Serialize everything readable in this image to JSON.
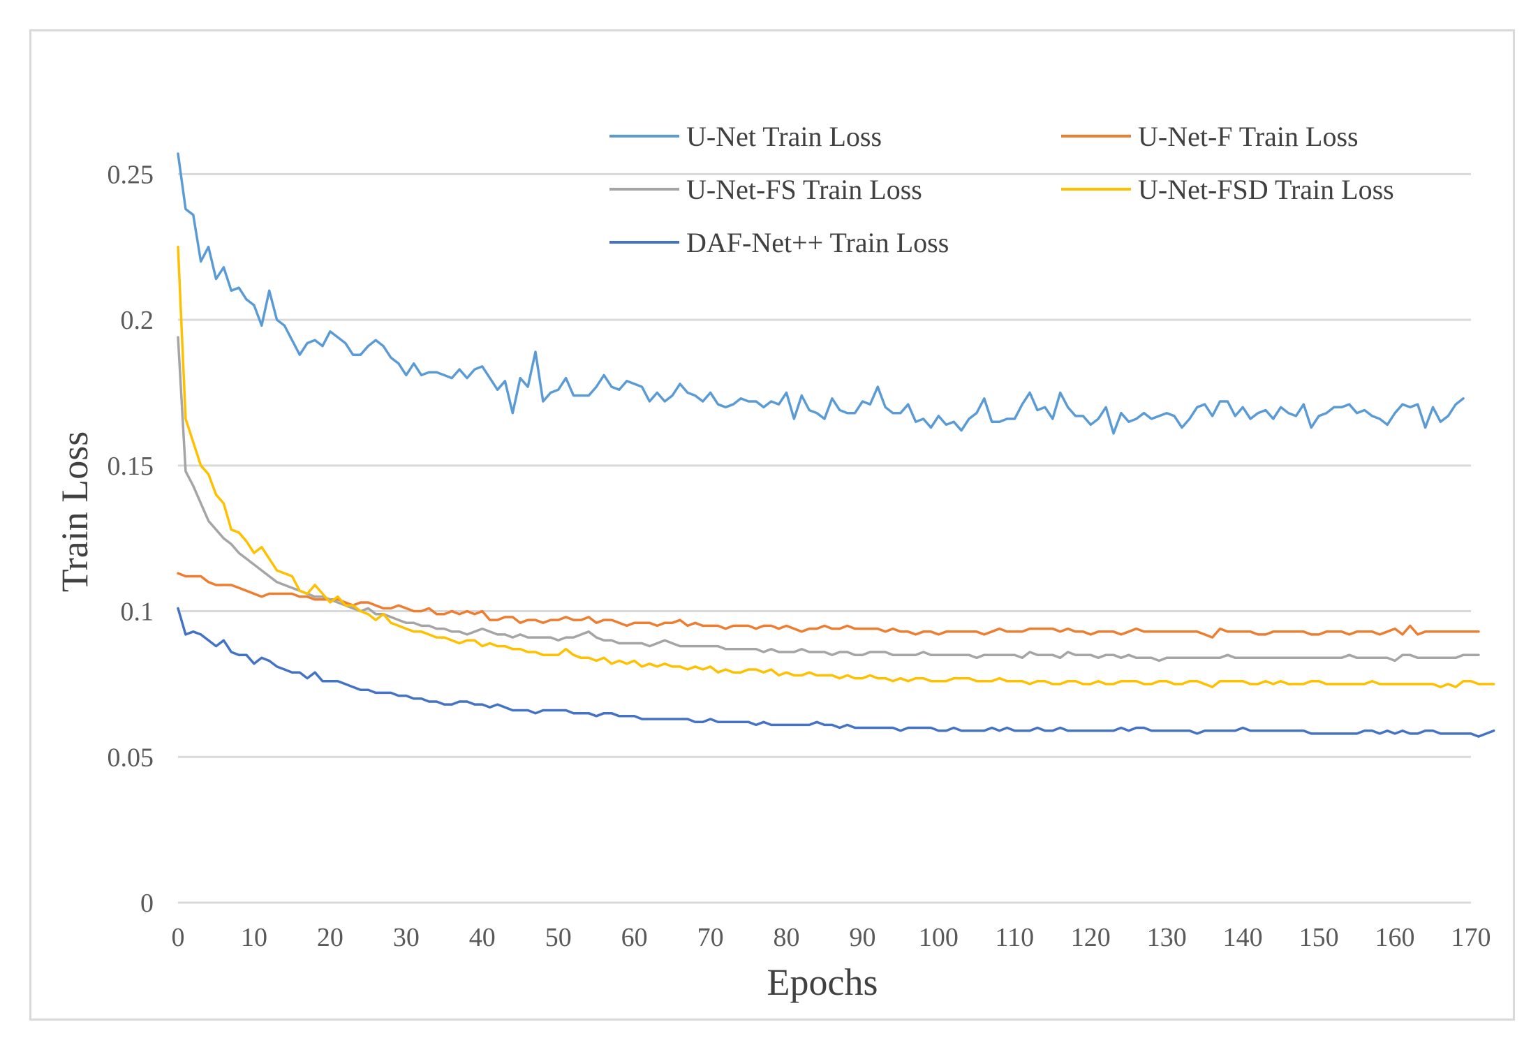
{
  "chart_data": {
    "type": "line",
    "title": "",
    "xlabel": "Epochs",
    "ylabel": "Train Loss",
    "xlim": [
      0,
      170
    ],
    "ylim": [
      0,
      0.275
    ],
    "grid": true,
    "legend_position": "top-right",
    "x_ticks": [
      "0",
      "10",
      "20",
      "30",
      "40",
      "50",
      "60",
      "70",
      "80",
      "90",
      "100",
      "110",
      "120",
      "130",
      "140",
      "150",
      "160",
      "170"
    ],
    "y_ticks": [
      "0",
      "0.05",
      "0.1",
      "0.15",
      "0.2",
      "0.25"
    ],
    "x_step": 1,
    "series": [
      {
        "name": "U-Net Train Loss",
        "color": "#5b9bd5",
        "values": [
          0.257,
          0.238,
          0.236,
          0.22,
          0.225,
          0.214,
          0.218,
          0.21,
          0.211,
          0.207,
          0.205,
          0.198,
          0.21,
          0.2,
          0.198,
          0.193,
          0.188,
          0.192,
          0.193,
          0.191,
          0.196,
          0.194,
          0.192,
          0.188,
          0.188,
          0.191,
          0.193,
          0.191,
          0.187,
          0.185,
          0.181,
          0.185,
          0.181,
          0.182,
          0.182,
          0.181,
          0.18,
          0.183,
          0.18,
          0.183,
          0.184,
          0.18,
          0.176,
          0.179,
          0.168,
          0.18,
          0.177,
          0.189,
          0.172,
          0.175,
          0.176,
          0.18,
          0.174,
          0.174,
          0.174,
          0.177,
          0.181,
          0.177,
          0.176,
          0.179,
          0.178,
          0.177,
          0.172,
          0.175,
          0.172,
          0.174,
          0.178,
          0.175,
          0.174,
          0.172,
          0.175,
          0.171,
          0.17,
          0.171,
          0.173,
          0.172,
          0.172,
          0.17,
          0.172,
          0.171,
          0.175,
          0.166,
          0.174,
          0.169,
          0.168,
          0.166,
          0.173,
          0.169,
          0.168,
          0.168,
          0.172,
          0.171,
          0.177,
          0.17,
          0.168,
          0.168,
          0.171,
          0.165,
          0.166,
          0.163,
          0.167,
          0.164,
          0.165,
          0.162,
          0.166,
          0.168,
          0.173,
          0.165,
          0.165,
          0.166,
          0.166,
          0.171,
          0.175,
          0.169,
          0.17,
          0.166,
          0.175,
          0.17,
          0.167,
          0.167,
          0.164,
          0.166,
          0.17,
          0.161,
          0.168,
          0.165,
          0.166,
          0.168,
          0.166,
          0.167,
          0.168,
          0.167,
          0.163,
          0.166,
          0.17,
          0.171,
          0.167,
          0.172,
          0.172,
          0.167,
          0.17,
          0.166,
          0.168,
          0.169,
          0.166,
          0.17,
          0.168,
          0.167,
          0.171,
          0.163,
          0.167,
          0.168,
          0.17,
          0.17,
          0.171,
          0.168,
          0.169,
          0.167,
          0.166,
          0.164,
          0.168,
          0.171,
          0.17,
          0.171,
          0.163,
          0.17,
          0.165,
          0.167,
          0.171,
          0.173
        ]
      },
      {
        "name": "U-Net-F Train Loss",
        "color": "#ed7d31",
        "values": [
          0.113,
          0.112,
          0.112,
          0.112,
          0.11,
          0.109,
          0.109,
          0.109,
          0.108,
          0.107,
          0.106,
          0.105,
          0.106,
          0.106,
          0.106,
          0.106,
          0.105,
          0.105,
          0.104,
          0.104,
          0.104,
          0.104,
          0.103,
          0.102,
          0.103,
          0.103,
          0.102,
          0.101,
          0.101,
          0.102,
          0.101,
          0.1,
          0.1,
          0.101,
          0.099,
          0.099,
          0.1,
          0.099,
          0.1,
          0.099,
          0.1,
          0.097,
          0.097,
          0.098,
          0.098,
          0.096,
          0.097,
          0.097,
          0.096,
          0.097,
          0.097,
          0.098,
          0.097,
          0.097,
          0.098,
          0.096,
          0.097,
          0.097,
          0.096,
          0.095,
          0.096,
          0.096,
          0.096,
          0.095,
          0.096,
          0.096,
          0.097,
          0.095,
          0.096,
          0.095,
          0.095,
          0.095,
          0.094,
          0.095,
          0.095,
          0.095,
          0.094,
          0.095,
          0.095,
          0.094,
          0.095,
          0.094,
          0.093,
          0.094,
          0.094,
          0.095,
          0.094,
          0.094,
          0.095,
          0.094,
          0.094,
          0.094,
          0.094,
          0.093,
          0.094,
          0.093,
          0.093,
          0.092,
          0.093,
          0.093,
          0.092,
          0.093,
          0.093,
          0.093,
          0.093,
          0.093,
          0.092,
          0.093,
          0.094,
          0.093,
          0.093,
          0.093,
          0.094,
          0.094,
          0.094,
          0.094,
          0.093,
          0.094,
          0.093,
          0.093,
          0.092,
          0.093,
          0.093,
          0.093,
          0.092,
          0.093,
          0.094,
          0.093,
          0.093,
          0.093,
          0.093,
          0.093,
          0.093,
          0.093,
          0.093,
          0.092,
          0.091,
          0.094,
          0.093,
          0.093,
          0.093,
          0.093,
          0.092,
          0.092,
          0.093,
          0.093,
          0.093,
          0.093,
          0.093,
          0.092,
          0.092,
          0.093,
          0.093,
          0.093,
          0.092,
          0.093,
          0.093,
          0.093,
          0.092,
          0.093,
          0.094,
          0.092,
          0.095,
          0.092,
          0.093,
          0.093,
          0.093,
          0.093,
          0.093,
          0.093,
          0.093,
          0.093
        ]
      },
      {
        "name": "U-Net-FS Train Loss",
        "color": "#a5a5a5",
        "values": [
          0.194,
          0.148,
          0.143,
          0.137,
          0.131,
          0.128,
          0.125,
          0.123,
          0.12,
          0.118,
          0.116,
          0.114,
          0.112,
          0.11,
          0.109,
          0.108,
          0.107,
          0.106,
          0.105,
          0.105,
          0.104,
          0.103,
          0.102,
          0.101,
          0.1,
          0.101,
          0.099,
          0.099,
          0.098,
          0.097,
          0.096,
          0.096,
          0.095,
          0.095,
          0.094,
          0.094,
          0.093,
          0.093,
          0.092,
          0.093,
          0.094,
          0.093,
          0.092,
          0.092,
          0.091,
          0.092,
          0.091,
          0.091,
          0.091,
          0.091,
          0.09,
          0.091,
          0.091,
          0.092,
          0.093,
          0.091,
          0.09,
          0.09,
          0.089,
          0.089,
          0.089,
          0.089,
          0.088,
          0.089,
          0.09,
          0.089,
          0.088,
          0.088,
          0.088,
          0.088,
          0.088,
          0.088,
          0.087,
          0.087,
          0.087,
          0.087,
          0.087,
          0.086,
          0.087,
          0.086,
          0.086,
          0.086,
          0.087,
          0.086,
          0.086,
          0.086,
          0.085,
          0.086,
          0.086,
          0.085,
          0.085,
          0.086,
          0.086,
          0.086,
          0.085,
          0.085,
          0.085,
          0.085,
          0.086,
          0.085,
          0.085,
          0.085,
          0.085,
          0.085,
          0.085,
          0.084,
          0.085,
          0.085,
          0.085,
          0.085,
          0.085,
          0.084,
          0.086,
          0.085,
          0.085,
          0.085,
          0.084,
          0.086,
          0.085,
          0.085,
          0.085,
          0.084,
          0.085,
          0.085,
          0.084,
          0.085,
          0.084,
          0.084,
          0.084,
          0.083,
          0.084,
          0.084,
          0.084,
          0.084,
          0.084,
          0.084,
          0.084,
          0.084,
          0.085,
          0.084,
          0.084,
          0.084,
          0.084,
          0.084,
          0.084,
          0.084,
          0.084,
          0.084,
          0.084,
          0.084,
          0.084,
          0.084,
          0.084,
          0.084,
          0.085,
          0.084,
          0.084,
          0.084,
          0.084,
          0.084,
          0.083,
          0.085,
          0.085,
          0.084,
          0.084,
          0.084,
          0.084,
          0.084,
          0.084,
          0.085,
          0.085,
          0.085
        ]
      },
      {
        "name": "U-Net-FSD Train Loss",
        "color": "#ffc000",
        "values": [
          0.225,
          0.166,
          0.158,
          0.15,
          0.147,
          0.14,
          0.137,
          0.128,
          0.127,
          0.124,
          0.12,
          0.122,
          0.118,
          0.114,
          0.113,
          0.112,
          0.107,
          0.106,
          0.109,
          0.106,
          0.103,
          0.105,
          0.102,
          0.102,
          0.1,
          0.099,
          0.097,
          0.099,
          0.096,
          0.095,
          0.094,
          0.093,
          0.093,
          0.092,
          0.091,
          0.091,
          0.09,
          0.089,
          0.09,
          0.09,
          0.088,
          0.089,
          0.088,
          0.088,
          0.087,
          0.087,
          0.086,
          0.086,
          0.085,
          0.085,
          0.085,
          0.087,
          0.085,
          0.084,
          0.084,
          0.083,
          0.084,
          0.082,
          0.083,
          0.082,
          0.083,
          0.081,
          0.082,
          0.081,
          0.082,
          0.081,
          0.081,
          0.08,
          0.081,
          0.08,
          0.081,
          0.079,
          0.08,
          0.079,
          0.079,
          0.08,
          0.08,
          0.079,
          0.08,
          0.078,
          0.079,
          0.078,
          0.078,
          0.079,
          0.078,
          0.078,
          0.078,
          0.077,
          0.078,
          0.077,
          0.077,
          0.078,
          0.077,
          0.077,
          0.076,
          0.077,
          0.076,
          0.077,
          0.077,
          0.076,
          0.076,
          0.076,
          0.077,
          0.077,
          0.077,
          0.076,
          0.076,
          0.076,
          0.077,
          0.076,
          0.076,
          0.076,
          0.075,
          0.076,
          0.076,
          0.075,
          0.075,
          0.076,
          0.076,
          0.075,
          0.075,
          0.076,
          0.075,
          0.075,
          0.076,
          0.076,
          0.076,
          0.075,
          0.075,
          0.076,
          0.076,
          0.075,
          0.075,
          0.076,
          0.076,
          0.075,
          0.074,
          0.076,
          0.076,
          0.076,
          0.076,
          0.075,
          0.075,
          0.076,
          0.075,
          0.076,
          0.075,
          0.075,
          0.075,
          0.076,
          0.076,
          0.075,
          0.075,
          0.075,
          0.075,
          0.075,
          0.075,
          0.076,
          0.075,
          0.075,
          0.075,
          0.075,
          0.075,
          0.075,
          0.075,
          0.075,
          0.074,
          0.075,
          0.074,
          0.076,
          0.076,
          0.075,
          0.075,
          0.075
        ]
      },
      {
        "name": "DAF-Net++ Train Loss",
        "color": "#4472c4",
        "values": [
          0.101,
          0.092,
          0.093,
          0.092,
          0.09,
          0.088,
          0.09,
          0.086,
          0.085,
          0.085,
          0.082,
          0.084,
          0.083,
          0.081,
          0.08,
          0.079,
          0.079,
          0.077,
          0.079,
          0.076,
          0.076,
          0.076,
          0.075,
          0.074,
          0.073,
          0.073,
          0.072,
          0.072,
          0.072,
          0.071,
          0.071,
          0.07,
          0.07,
          0.069,
          0.069,
          0.068,
          0.068,
          0.069,
          0.069,
          0.068,
          0.068,
          0.067,
          0.068,
          0.067,
          0.066,
          0.066,
          0.066,
          0.065,
          0.066,
          0.066,
          0.066,
          0.066,
          0.065,
          0.065,
          0.065,
          0.064,
          0.065,
          0.065,
          0.064,
          0.064,
          0.064,
          0.063,
          0.063,
          0.063,
          0.063,
          0.063,
          0.063,
          0.063,
          0.062,
          0.062,
          0.063,
          0.062,
          0.062,
          0.062,
          0.062,
          0.062,
          0.061,
          0.062,
          0.061,
          0.061,
          0.061,
          0.061,
          0.061,
          0.061,
          0.062,
          0.061,
          0.061,
          0.06,
          0.061,
          0.06,
          0.06,
          0.06,
          0.06,
          0.06,
          0.06,
          0.059,
          0.06,
          0.06,
          0.06,
          0.06,
          0.059,
          0.059,
          0.06,
          0.059,
          0.059,
          0.059,
          0.059,
          0.06,
          0.059,
          0.06,
          0.059,
          0.059,
          0.059,
          0.06,
          0.059,
          0.059,
          0.06,
          0.059,
          0.059,
          0.059,
          0.059,
          0.059,
          0.059,
          0.059,
          0.06,
          0.059,
          0.06,
          0.06,
          0.059,
          0.059,
          0.059,
          0.059,
          0.059,
          0.059,
          0.058,
          0.059,
          0.059,
          0.059,
          0.059,
          0.059,
          0.06,
          0.059,
          0.059,
          0.059,
          0.059,
          0.059,
          0.059,
          0.059,
          0.059,
          0.058,
          0.058,
          0.058,
          0.058,
          0.058,
          0.058,
          0.058,
          0.059,
          0.059,
          0.058,
          0.059,
          0.058,
          0.059,
          0.058,
          0.058,
          0.059,
          0.059,
          0.058,
          0.058,
          0.058,
          0.058,
          0.058,
          0.057,
          0.058,
          0.059
        ]
      }
    ]
  }
}
